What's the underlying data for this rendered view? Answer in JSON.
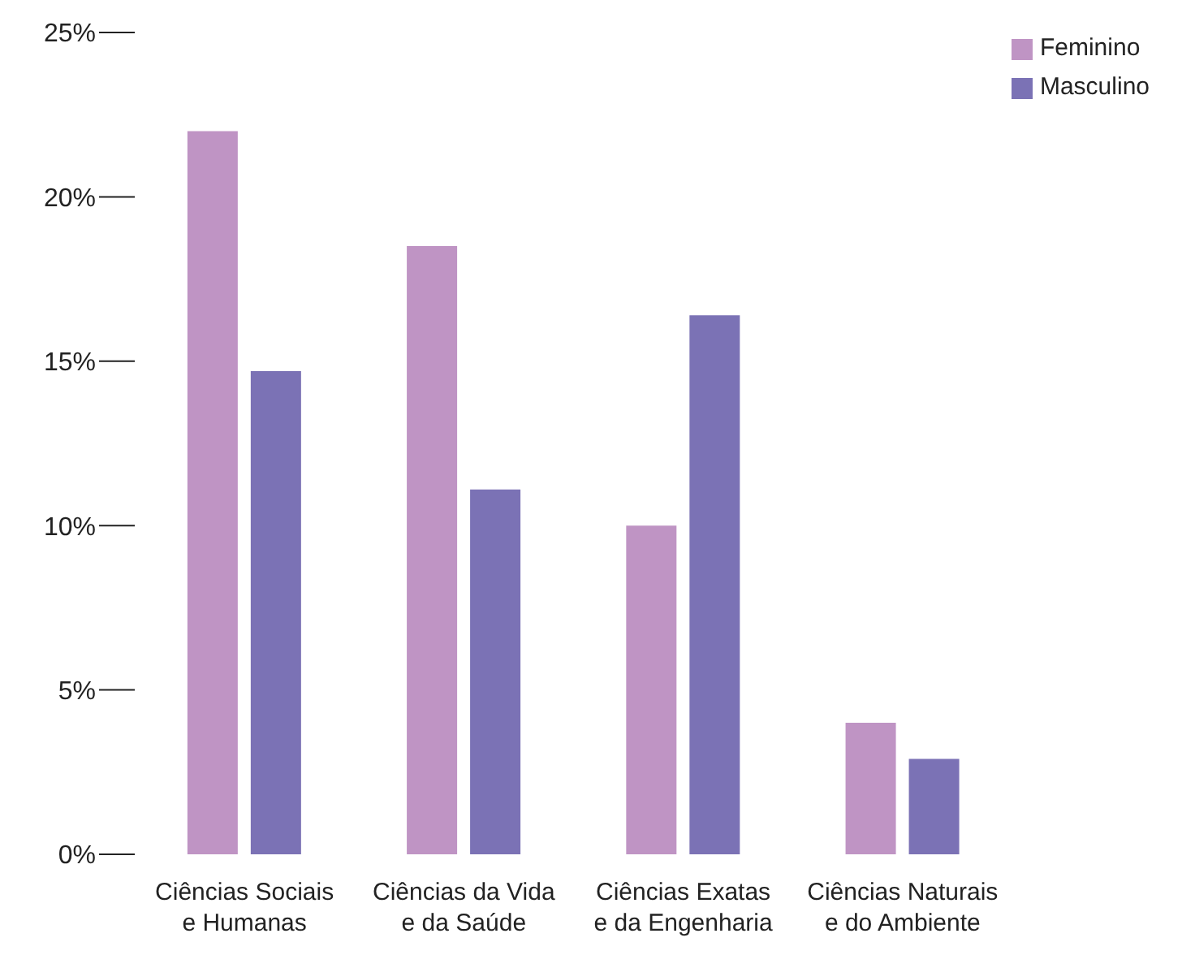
{
  "chart_data": {
    "type": "bar",
    "categories": [
      "Ciências Sociais\ne Humanas",
      "Ciências da Vida\ne da Saúde",
      "Ciências Exatas\ne da Engenharia",
      "Ciências Naturais\ne do Ambiente"
    ],
    "series": [
      {
        "name": "Feminino",
        "color": "#bf94c4",
        "values": [
          22,
          18.5,
          10,
          4
        ]
      },
      {
        "name": "Masculino",
        "color": "#7b72b5",
        "values": [
          14.7,
          11.1,
          16.4,
          2.9
        ]
      }
    ],
    "ylim": [
      0,
      25
    ],
    "yticks": [
      {
        "value": 0,
        "label": "0%"
      },
      {
        "value": 5,
        "label": "5%"
      },
      {
        "value": 10,
        "label": "10%"
      },
      {
        "value": 15,
        "label": "15%"
      },
      {
        "value": 20,
        "label": "20%"
      },
      {
        "value": 25,
        "label": "25%"
      }
    ],
    "grid": false,
    "legend": "top right"
  }
}
